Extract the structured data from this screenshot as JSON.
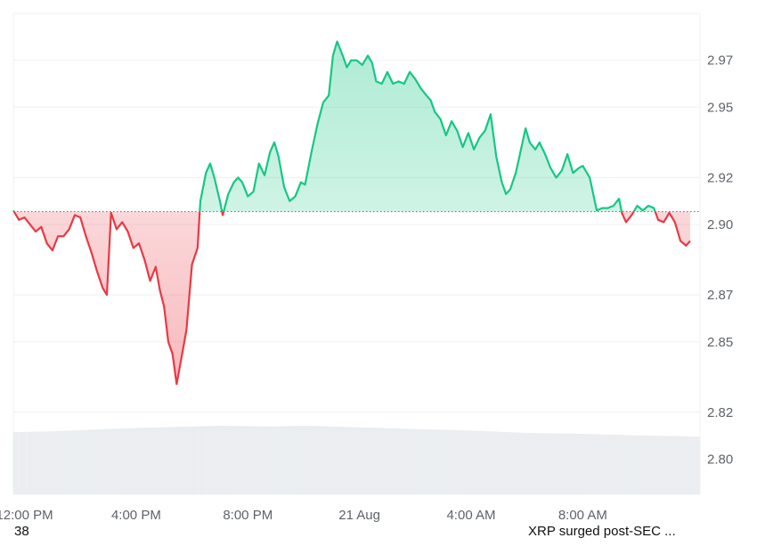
{
  "footer": {
    "left_text": "38",
    "right_text": "XRP surged post-SEC ..."
  },
  "colors": {
    "up_line": "#16c784",
    "down_line": "#ea3943",
    "up_fill": "#16c784",
    "down_fill": "#ea3943",
    "grid": "#eef0f3",
    "volume": "#e9ecf0",
    "baseline": "#777777"
  },
  "chart_data": {
    "type": "area",
    "title": "",
    "xlabel": "",
    "ylabel": "",
    "x_axis_labels": [
      "12:00 PM",
      "4:00 PM",
      "8:00 PM",
      "21 Aug",
      "4:00 AM",
      "8:00 AM"
    ],
    "y_axis_labels": [
      "2.97",
      "2.95",
      "2.92",
      "2.90",
      "2.87",
      "2.85",
      "2.82",
      "2.80"
    ],
    "ylim": [
      2.785,
      2.99
    ],
    "baseline_value": 2.9055,
    "grid": true,
    "y_axis_position": "right",
    "x_hours_range": [
      11.6,
      36.2
    ],
    "series": [
      {
        "type": "price",
        "points": [
          [
            11.6,
            2.906
          ],
          [
            11.8,
            2.902
          ],
          [
            12.0,
            2.903
          ],
          [
            12.2,
            2.9
          ],
          [
            12.4,
            2.897
          ],
          [
            12.6,
            2.899
          ],
          [
            12.8,
            2.892
          ],
          [
            13.0,
            2.889
          ],
          [
            13.2,
            2.895
          ],
          [
            13.4,
            2.895
          ],
          [
            13.6,
            2.898
          ],
          [
            13.8,
            2.904
          ],
          [
            14.0,
            2.903
          ],
          [
            14.2,
            2.895
          ],
          [
            14.4,
            2.888
          ],
          [
            14.6,
            2.88
          ],
          [
            14.8,
            2.873
          ],
          [
            14.95,
            2.87
          ],
          [
            15.1,
            2.905
          ],
          [
            15.3,
            2.898
          ],
          [
            15.5,
            2.901
          ],
          [
            15.7,
            2.897
          ],
          [
            15.9,
            2.89
          ],
          [
            16.1,
            2.892
          ],
          [
            16.3,
            2.885
          ],
          [
            16.5,
            2.876
          ],
          [
            16.7,
            2.882
          ],
          [
            16.85,
            2.872
          ],
          [
            17.0,
            2.865
          ],
          [
            17.15,
            2.85
          ],
          [
            17.3,
            2.845
          ],
          [
            17.45,
            2.832
          ],
          [
            17.65,
            2.845
          ],
          [
            17.8,
            2.855
          ],
          [
            18.0,
            2.883
          ],
          [
            18.2,
            2.89
          ],
          [
            18.3,
            2.91
          ],
          [
            18.5,
            2.922
          ],
          [
            18.65,
            2.926
          ],
          [
            18.8,
            2.92
          ],
          [
            19.0,
            2.91
          ],
          [
            19.1,
            2.904
          ],
          [
            19.3,
            2.913
          ],
          [
            19.5,
            2.918
          ],
          [
            19.65,
            2.92
          ],
          [
            19.8,
            2.918
          ],
          [
            20.0,
            2.912
          ],
          [
            20.2,
            2.914
          ],
          [
            20.4,
            2.926
          ],
          [
            20.6,
            2.921
          ],
          [
            20.8,
            2.931
          ],
          [
            20.95,
            2.935
          ],
          [
            21.1,
            2.929
          ],
          [
            21.3,
            2.916
          ],
          [
            21.5,
            2.91
          ],
          [
            21.7,
            2.912
          ],
          [
            21.9,
            2.918
          ],
          [
            22.05,
            2.917
          ],
          [
            22.3,
            2.932
          ],
          [
            22.5,
            2.943
          ],
          [
            22.7,
            2.952
          ],
          [
            22.9,
            2.955
          ],
          [
            23.05,
            2.972
          ],
          [
            23.2,
            2.978
          ],
          [
            23.4,
            2.972
          ],
          [
            23.55,
            2.967
          ],
          [
            23.7,
            2.97
          ],
          [
            23.9,
            2.97
          ],
          [
            24.1,
            2.968
          ],
          [
            24.3,
            2.972
          ],
          [
            24.45,
            2.969
          ],
          [
            24.6,
            2.961
          ],
          [
            24.8,
            2.96
          ],
          [
            25.0,
            2.965
          ],
          [
            25.2,
            2.96
          ],
          [
            25.4,
            2.961
          ],
          [
            25.6,
            2.96
          ],
          [
            25.8,
            2.965
          ],
          [
            26.0,
            2.962
          ],
          [
            26.2,
            2.958
          ],
          [
            26.4,
            2.955
          ],
          [
            26.55,
            2.953
          ],
          [
            26.7,
            2.948
          ],
          [
            26.9,
            2.945
          ],
          [
            27.1,
            2.938
          ],
          [
            27.3,
            2.944
          ],
          [
            27.5,
            2.94
          ],
          [
            27.7,
            2.933
          ],
          [
            27.9,
            2.939
          ],
          [
            28.1,
            2.932
          ],
          [
            28.3,
            2.937
          ],
          [
            28.5,
            2.94
          ],
          [
            28.7,
            2.947
          ],
          [
            28.9,
            2.929
          ],
          [
            29.1,
            2.918
          ],
          [
            29.25,
            2.913
          ],
          [
            29.4,
            2.915
          ],
          [
            29.6,
            2.922
          ],
          [
            29.75,
            2.93
          ],
          [
            29.95,
            2.941
          ],
          [
            30.1,
            2.935
          ],
          [
            30.3,
            2.932
          ],
          [
            30.45,
            2.935
          ],
          [
            30.65,
            2.93
          ],
          [
            30.85,
            2.924
          ],
          [
            31.05,
            2.92
          ],
          [
            31.25,
            2.923
          ],
          [
            31.45,
            2.93
          ],
          [
            31.65,
            2.922
          ],
          [
            31.85,
            2.924
          ],
          [
            32.0,
            2.925
          ],
          [
            32.25,
            2.92
          ],
          [
            32.5,
            2.906
          ],
          [
            32.7,
            2.907
          ],
          [
            32.9,
            2.907
          ],
          [
            33.1,
            2.908
          ],
          [
            33.3,
            2.911
          ],
          [
            33.4,
            2.905
          ],
          [
            33.55,
            2.901
          ],
          [
            33.75,
            2.904
          ],
          [
            33.95,
            2.908
          ],
          [
            34.15,
            2.906
          ],
          [
            34.35,
            2.908
          ],
          [
            34.55,
            2.907
          ],
          [
            34.7,
            2.902
          ],
          [
            34.9,
            2.901
          ],
          [
            35.1,
            2.905
          ],
          [
            35.3,
            2.901
          ],
          [
            35.5,
            2.893
          ],
          [
            35.7,
            2.891
          ],
          [
            35.85,
            2.893
          ]
        ]
      },
      {
        "type": "volume",
        "note_units": "relative",
        "points": [
          [
            11.6,
            0.78
          ],
          [
            13.0,
            0.79
          ],
          [
            15.0,
            0.82
          ],
          [
            17.0,
            0.84
          ],
          [
            19.0,
            0.86
          ],
          [
            21.0,
            0.85
          ],
          [
            22.0,
            0.86
          ],
          [
            24.0,
            0.84
          ],
          [
            26.0,
            0.82
          ],
          [
            28.0,
            0.8
          ],
          [
            30.0,
            0.77
          ],
          [
            32.0,
            0.76
          ],
          [
            34.0,
            0.74
          ],
          [
            35.5,
            0.73
          ],
          [
            36.2,
            0.72
          ]
        ]
      }
    ]
  }
}
